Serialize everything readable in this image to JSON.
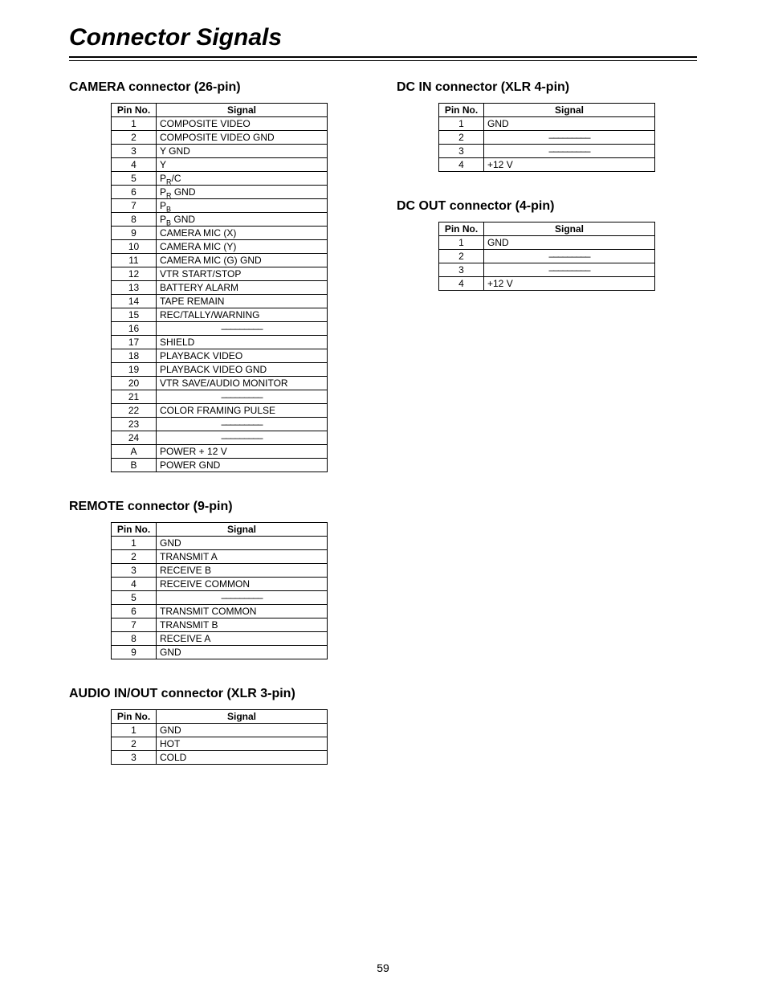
{
  "page": {
    "title": "Connector Signals",
    "number": "59"
  },
  "sections": {
    "camera": {
      "title": "CAMERA connector (26-pin)",
      "headers": {
        "pin": "Pin No.",
        "signal": "Signal"
      },
      "rows": [
        {
          "pin": "1",
          "signal": "COMPOSITE VIDEO"
        },
        {
          "pin": "2",
          "signal": "COMPOSITE VIDEO GND"
        },
        {
          "pin": "3",
          "signal": "Y GND"
        },
        {
          "pin": "4",
          "signal": "Y"
        },
        {
          "pin": "5",
          "signal_html": "P<span class=\"sub\">R</span>/C"
        },
        {
          "pin": "6",
          "signal_html": "P<span class=\"sub\">R</span> GND"
        },
        {
          "pin": "7",
          "signal_html": "P<span class=\"sub\">B</span>"
        },
        {
          "pin": "8",
          "signal_html": "P<span class=\"sub\">B</span> GND"
        },
        {
          "pin": "9",
          "signal": "CAMERA MIC (X)"
        },
        {
          "pin": "10",
          "signal": "CAMERA MIC (Y)"
        },
        {
          "pin": "11",
          "signal": "CAMERA MIC (G) GND"
        },
        {
          "pin": "12",
          "signal": "VTR START/STOP"
        },
        {
          "pin": "13",
          "signal": "BATTERY ALARM"
        },
        {
          "pin": "14",
          "signal": "TAPE REMAIN"
        },
        {
          "pin": "15",
          "signal": "REC/TALLY/WARNING"
        },
        {
          "pin": "16",
          "dash": true
        },
        {
          "pin": "17",
          "signal": "SHIELD"
        },
        {
          "pin": "18",
          "signal": "PLAYBACK VIDEO"
        },
        {
          "pin": "19",
          "signal": "PLAYBACK VIDEO GND"
        },
        {
          "pin": "20",
          "signal": "VTR SAVE/AUDIO MONITOR"
        },
        {
          "pin": "21",
          "dash": true
        },
        {
          "pin": "22",
          "signal": "COLOR FRAMING PULSE"
        },
        {
          "pin": "23",
          "dash": true
        },
        {
          "pin": "24",
          "dash": true
        },
        {
          "pin": "A",
          "signal_html": "POWER <span class=\"plus\">+</span> 12 V"
        },
        {
          "pin": "B",
          "signal": "POWER GND"
        }
      ]
    },
    "remote": {
      "title": "REMOTE connector (9-pin)",
      "headers": {
        "pin": "Pin No.",
        "signal": "Signal"
      },
      "rows": [
        {
          "pin": "1",
          "signal": "GND"
        },
        {
          "pin": "2",
          "signal": "TRANSMIT A"
        },
        {
          "pin": "3",
          "signal": "RECEIVE B"
        },
        {
          "pin": "4",
          "signal": "RECEIVE COMMON"
        },
        {
          "pin": "5",
          "dash": true
        },
        {
          "pin": "6",
          "signal": "TRANSMIT COMMON"
        },
        {
          "pin": "7",
          "signal": "TRANSMIT B"
        },
        {
          "pin": "8",
          "signal": "RECEIVE A"
        },
        {
          "pin": "9",
          "signal": "GND"
        }
      ]
    },
    "audio": {
      "title": "AUDIO IN/OUT connector (XLR 3-pin)",
      "headers": {
        "pin": "Pin No.",
        "signal": "Signal"
      },
      "rows": [
        {
          "pin": "1",
          "signal": "GND"
        },
        {
          "pin": "2",
          "signal": "HOT"
        },
        {
          "pin": "3",
          "signal": "COLD"
        }
      ]
    },
    "dcin": {
      "title": "DC IN connector (XLR 4-pin)",
      "headers": {
        "pin": "Pin No.",
        "signal": "Signal"
      },
      "rows": [
        {
          "pin": "1",
          "signal": "GND"
        },
        {
          "pin": "2",
          "dash": true
        },
        {
          "pin": "3",
          "dash": true
        },
        {
          "pin": "4",
          "signal": "+12 V"
        }
      ]
    },
    "dcout": {
      "title": "DC OUT connector (4-pin)",
      "headers": {
        "pin": "Pin No.",
        "signal": "Signal"
      },
      "rows": [
        {
          "pin": "1",
          "signal": "GND"
        },
        {
          "pin": "2",
          "dash": true
        },
        {
          "pin": "3",
          "dash": true
        },
        {
          "pin": "4",
          "signal": "+12 V"
        }
      ]
    }
  },
  "style": {
    "dash_glyph": "–––––––––"
  }
}
